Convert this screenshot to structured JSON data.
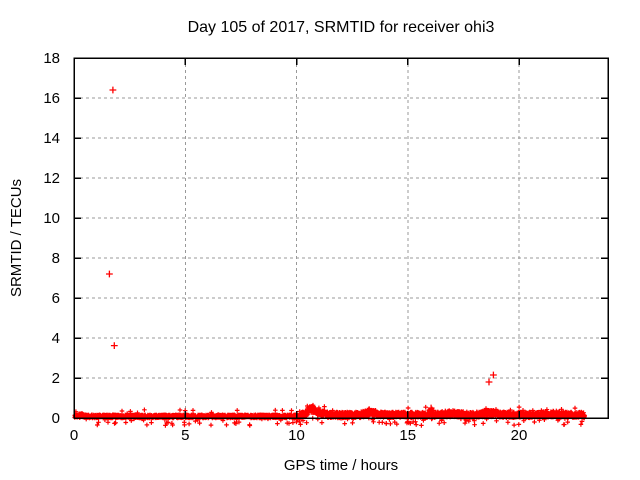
{
  "window": {
    "background": "#ffffff"
  },
  "chart_data": {
    "type": "scatter",
    "title": "Day 105 of 2017, SRMTID for receiver ohi3",
    "xlabel": "GPS time / hours",
    "ylabel": "SRMTID / TECUs",
    "xlim": [
      0,
      24
    ],
    "ylim": [
      0,
      18
    ],
    "xticks": [
      0,
      5,
      10,
      15,
      20
    ],
    "yticks": [
      0,
      2,
      4,
      6,
      8,
      10,
      12,
      14,
      16,
      18
    ],
    "grid": true,
    "legend": "none",
    "marker": "plus",
    "series_color": "#ff0000",
    "grid_color": "#999999",
    "axis_color": "#000000",
    "outlier_points": [
      [
        1.75,
        16.4
      ],
      [
        1.59,
        7.2
      ],
      [
        1.81,
        3.62
      ],
      [
        16.05,
        0.5
      ],
      [
        18.65,
        1.8
      ],
      [
        18.85,
        2.15
      ]
    ],
    "baseline_band": {
      "description": "dense near-zero SRMTID noise band of + markers",
      "x_start": 0.03,
      "x_end": 22.95,
      "step": 0.008,
      "base_max": 0.16,
      "elevated_from_x": 10.2,
      "elevated_max": 0.3,
      "negative_fraction": 0.04,
      "negative_max": 0.38,
      "pop_fraction": 0.012,
      "pop_extra": 0.25,
      "seed": 105,
      "bumps": [
        {
          "x": 0.3,
          "amp": 0.1,
          "width": 0.15
        },
        {
          "x": 10.65,
          "amp": 0.45,
          "width": 0.2
        },
        {
          "x": 11.05,
          "amp": 0.15,
          "width": 0.3
        },
        {
          "x": 13.3,
          "amp": 0.2,
          "width": 0.3
        },
        {
          "x": 16.05,
          "amp": 0.3,
          "width": 0.1
        },
        {
          "x": 17.0,
          "amp": 0.1,
          "width": 0.5
        },
        {
          "x": 18.7,
          "amp": 0.15,
          "width": 0.4
        },
        {
          "x": 21.5,
          "amp": 0.06,
          "width": 0.8
        }
      ]
    }
  }
}
